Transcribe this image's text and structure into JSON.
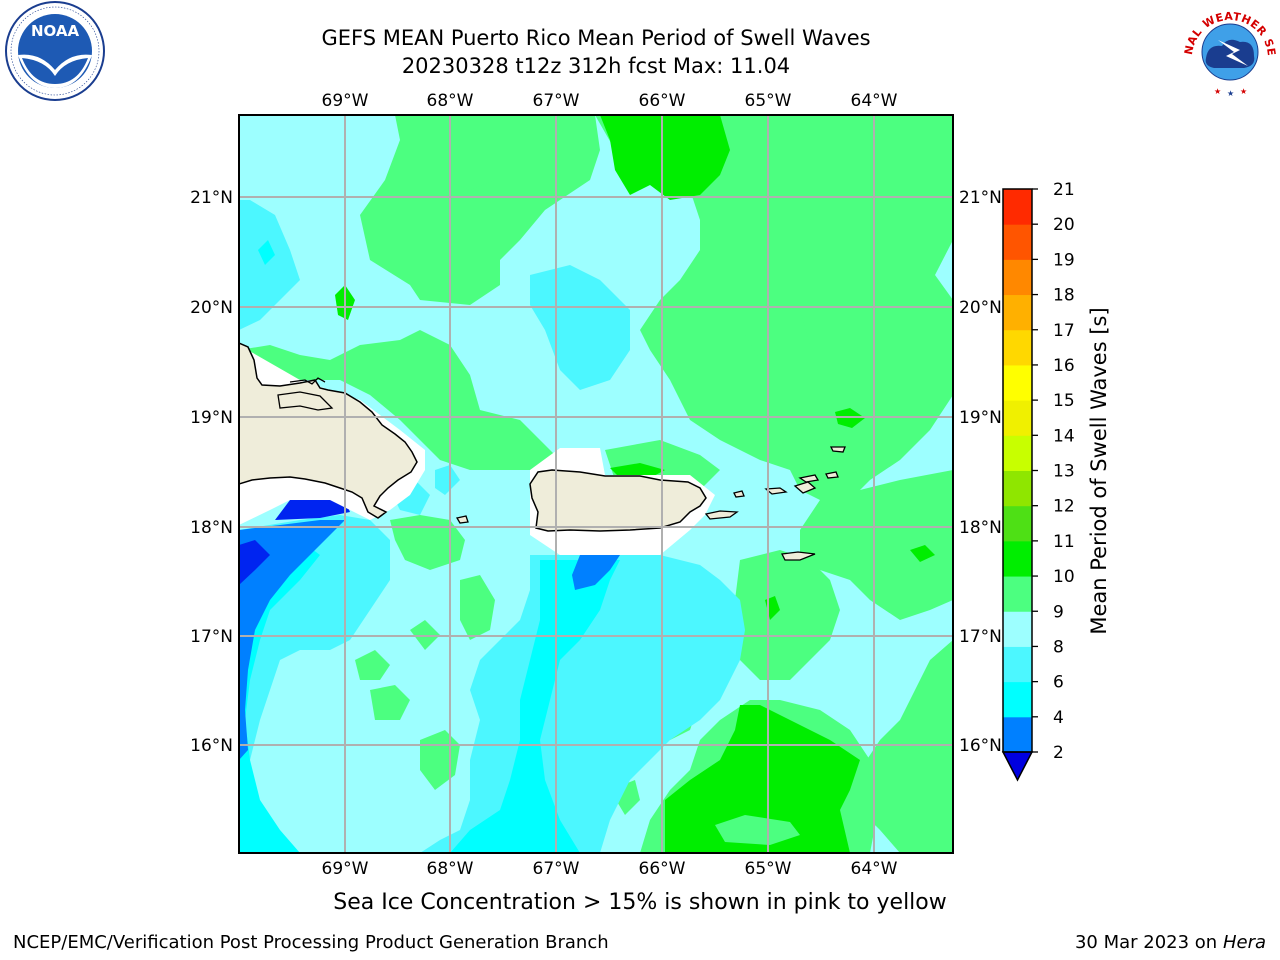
{
  "title_line1": "GEFS MEAN Puerto Rico Mean Period of Swell Waves",
  "title_line2": "20230328 t12z 312h fcst   Max: 11.04",
  "footer_note": "Sea Ice Concentration > 15% is shown in pink to yellow",
  "credit_left": "NCEP/EMC/Verification Post Processing Product Generation Branch",
  "credit_date": "30 Mar 2023 on",
  "credit_machine": "Hera",
  "logos": {
    "noaa": "NOAA",
    "nws": "NATIONAL WEATHER SERVICE"
  },
  "map": {
    "lon_labels": [
      "69°W",
      "68°W",
      "67°W",
      "66°W",
      "65°W",
      "64°W"
    ],
    "lat_labels": [
      "21°N",
      "20°N",
      "19°N",
      "18°N",
      "17°N",
      "16°N"
    ],
    "land_color": "#efedda"
  },
  "colorbar": {
    "label": "Mean Period of Swell Waves [s]",
    "ticks": [
      "2",
      "4",
      "6",
      "8",
      "9",
      "10",
      "11",
      "12",
      "13",
      "14",
      "15",
      "16",
      "17",
      "18",
      "19",
      "20",
      "21"
    ],
    "colors": [
      "#0024f0",
      "#0080ff",
      "#00ffff",
      "#4cf7ff",
      "#9dffff",
      "#4cff80",
      "#00ee00",
      "#4ee015",
      "#8fe600",
      "#c8ff00",
      "#f0f000",
      "#ffff00",
      "#ffd800",
      "#ffb000",
      "#ff8800",
      "#ff5500",
      "#ff2a00",
      "#ff0000"
    ],
    "extend_color": "#0000e0"
  }
}
